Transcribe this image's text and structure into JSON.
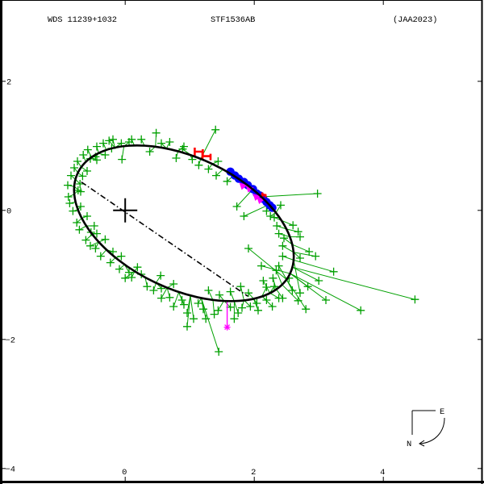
{
  "header": {
    "left": "WDS 11239+1032",
    "center": "STF1536AB",
    "right": "(JAA2023)"
  },
  "compass": {
    "east_label": "E",
    "north_label": "N"
  },
  "colors": {
    "green_observations": "#00a000",
    "blue_observations": "#0000ff",
    "magenta_observations": "#ff00ff",
    "red_observations": "#ff0000",
    "orbit": "#000000"
  },
  "chart_data": {
    "type": "scatter",
    "title": "WDS 11239+1032",
    "subtitle": "STF1536AB",
    "annotation": "(JAA2023)",
    "xlabel": "",
    "ylabel": "",
    "xlim": [
      -1.94,
      5.56
    ],
    "ylim": [
      -4.24,
      3.26
    ],
    "x_ticks": [
      0,
      2,
      4
    ],
    "y_ticks": [
      2,
      0,
      -2,
      -4
    ],
    "grid": false,
    "legend": "none",
    "primary": [
      0,
      0
    ],
    "orbit": {
      "type": "ellipse",
      "cx": 0.91,
      "cy": -0.2,
      "a": 1.82,
      "b": 1.02,
      "angle_deg": -25.3
    },
    "line_of_nodes": [
      [
        -0.68,
        0.44
      ],
      [
        1.9,
        -1.33
      ]
    ],
    "series": [
      {
        "name": "green plus observations (obs_x, obs_y, orbit_x, orbit_y)",
        "color": "#00a000",
        "marker": "plus",
        "points": [
          [
            -0.81,
            -0.01,
            -0.73,
            0.01
          ],
          [
            -0.86,
            0.11,
            -0.77,
            0.13
          ],
          [
            -0.73,
            0.31,
            -0.79,
            0.25
          ],
          [
            -0.89,
            0.39,
            -0.79,
            0.37
          ],
          [
            -0.84,
            0.54,
            -0.77,
            0.48
          ],
          [
            -0.7,
            0.41,
            -0.77,
            0.48
          ],
          [
            -0.79,
            0.66,
            -0.73,
            0.58
          ],
          [
            -0.74,
            0.76,
            -0.68,
            0.67
          ],
          [
            -0.59,
            0.61,
            -0.68,
            0.67
          ],
          [
            -0.65,
            0.86,
            -0.61,
            0.75
          ],
          [
            -0.54,
            0.8,
            -0.61,
            0.75
          ],
          [
            -0.58,
            0.94,
            -0.52,
            0.82
          ],
          [
            -0.44,
            0.78,
            -0.52,
            0.82
          ],
          [
            -0.44,
            0.99,
            -0.41,
            0.88
          ],
          [
            -0.31,
            0.86,
            -0.41,
            0.88
          ],
          [
            -0.34,
            1.04,
            -0.29,
            0.93
          ],
          [
            -0.21,
            0.96,
            -0.29,
            0.93
          ],
          [
            -0.19,
            1.1,
            -0.16,
            0.97
          ],
          [
            -0.06,
            1.04,
            -0.16,
            0.97
          ],
          [
            0.06,
            1.06,
            -0.02,
            0.99
          ],
          [
            -0.05,
            0.79,
            -0.02,
            0.99
          ],
          [
            0.1,
            1.1,
            0.14,
            1.01
          ],
          [
            0.48,
            1.2,
            0.47,
            0.99
          ],
          [
            0.25,
            1.1,
            0.3,
            1.0
          ],
          [
            0.69,
            1.06,
            0.64,
            0.96
          ],
          [
            0.79,
            0.81,
            0.82,
            0.92
          ],
          [
            0.89,
            0.95,
            1.0,
            0.87
          ],
          [
            1.14,
            0.7,
            1.17,
            0.8
          ],
          [
            1.4,
            1.25,
            1.17,
            0.8
          ],
          [
            1.29,
            0.64,
            1.35,
            0.72
          ],
          [
            1.44,
            0.76,
            1.35,
            0.72
          ],
          [
            1.41,
            0.54,
            1.52,
            0.64
          ],
          [
            1.58,
            0.45,
            1.68,
            0.54
          ],
          [
            1.73,
            0.06,
            1.98,
            0.33
          ],
          [
            2.98,
            0.26,
            2.11,
            0.21
          ],
          [
            1.84,
            -0.09,
            2.23,
            0.09
          ],
          [
            -0.75,
            -0.19,
            -0.67,
            -0.12
          ],
          [
            -0.59,
            -0.09,
            -0.67,
            -0.12
          ],
          [
            -0.71,
            -0.3,
            -0.6,
            -0.24
          ],
          [
            -0.53,
            -0.34,
            -0.6,
            -0.24
          ],
          [
            -0.61,
            -0.46,
            -0.51,
            -0.37
          ],
          [
            -0.44,
            -0.36,
            -0.51,
            -0.37
          ],
          [
            -0.46,
            -0.59,
            -0.41,
            -0.49
          ],
          [
            -0.31,
            -0.45,
            -0.41,
            -0.49
          ],
          [
            -0.38,
            -0.71,
            -0.29,
            -0.61
          ],
          [
            -0.19,
            -0.64,
            -0.29,
            -0.61
          ],
          [
            -0.23,
            -0.81,
            -0.15,
            -0.73
          ],
          [
            -0.06,
            -0.71,
            -0.15,
            -0.73
          ],
          [
            -0.09,
            -0.91,
            -0.01,
            -0.84
          ],
          [
            0.06,
            -0.96,
            -0.01,
            -0.84
          ],
          [
            0.19,
            -0.88,
            0.15,
            -0.94
          ],
          [
            0.1,
            -1.04,
            0.15,
            -0.94
          ],
          [
            0.34,
            -1.18,
            0.31,
            -1.04
          ],
          [
            0.25,
            -0.99,
            0.31,
            -1.04
          ],
          [
            0.55,
            -1.01,
            0.48,
            -1.12
          ],
          [
            0.56,
            -1.21,
            0.48,
            -1.12
          ],
          [
            0.69,
            -1.35,
            0.65,
            -1.2
          ],
          [
            0.56,
            -1.36,
            0.65,
            -1.2
          ],
          [
            0.91,
            -1.46,
            0.83,
            -1.27
          ],
          [
            0.75,
            -1.49,
            0.83,
            -1.27
          ],
          [
            1.06,
            -1.68,
            1.01,
            -1.32
          ],
          [
            0.96,
            -1.8,
            1.01,
            -1.32
          ],
          [
            1.21,
            -1.53,
            1.18,
            -1.36
          ],
          [
            1.45,
            -2.19,
            1.18,
            -1.36
          ],
          [
            1.38,
            -1.61,
            1.36,
            -1.39
          ],
          [
            1.29,
            -1.24,
            1.36,
            -1.39
          ],
          [
            1.44,
            -1.55,
            1.53,
            -1.4
          ],
          [
            1.63,
            -1.5,
            1.53,
            -1.4
          ],
          [
            1.75,
            -1.59,
            1.69,
            -1.41
          ],
          [
            1.63,
            -1.26,
            1.69,
            -1.41
          ],
          [
            1.94,
            -1.49,
            1.84,
            -1.39
          ],
          [
            1.79,
            -1.18,
            1.84,
            -1.39
          ],
          [
            2.06,
            -1.55,
            1.99,
            -1.37
          ],
          [
            1.91,
            -1.28,
            1.99,
            -1.37
          ],
          [
            2.28,
            -1.49,
            2.12,
            -1.33
          ],
          [
            2.19,
            -1.19,
            2.12,
            -1.33
          ],
          [
            2.38,
            -1.36,
            2.24,
            -1.28
          ],
          [
            2.14,
            -1.09,
            2.24,
            -1.28
          ],
          [
            2.44,
            -1.36,
            2.34,
            -1.22
          ],
          [
            2.29,
            -1.05,
            2.34,
            -1.22
          ],
          [
            2.68,
            -1.4,
            2.43,
            -1.15
          ],
          [
            2.34,
            -0.93,
            2.43,
            -1.15
          ],
          [
            2.8,
            -1.53,
            2.5,
            -1.07
          ],
          [
            2.38,
            -0.86,
            2.5,
            -1.07
          ],
          [
            3.11,
            -1.39,
            2.56,
            -0.98
          ],
          [
            3.65,
            -1.55,
            2.56,
            -0.98
          ],
          [
            4.49,
            -1.38,
            2.59,
            -0.88
          ],
          [
            3.0,
            -1.09,
            2.59,
            -0.88
          ],
          [
            3.23,
            -0.95,
            2.61,
            -0.77
          ],
          [
            2.71,
            -1.28,
            2.61,
            -0.77
          ],
          [
            2.44,
            -0.71,
            2.61,
            -0.77
          ],
          [
            2.95,
            -0.71,
            2.61,
            -0.65
          ],
          [
            2.44,
            -0.55,
            2.61,
            -0.65
          ],
          [
            2.85,
            -0.64,
            2.59,
            -0.53
          ],
          [
            2.46,
            -0.43,
            2.59,
            -0.53
          ],
          [
            2.71,
            -0.41,
            2.55,
            -0.41
          ],
          [
            2.38,
            -0.36,
            2.55,
            -0.41
          ],
          [
            2.68,
            -0.33,
            2.5,
            -0.29
          ],
          [
            2.35,
            -0.24,
            2.5,
            -0.29
          ],
          [
            2.6,
            -0.23,
            2.43,
            -0.16
          ],
          [
            2.31,
            -0.11,
            2.43,
            -0.16
          ],
          [
            2.41,
            0.08,
            2.34,
            -0.03
          ],
          [
            2.25,
            -0.09,
            2.34,
            -0.03
          ],
          [
            2.19,
            -0.01,
            2.23,
            0.09
          ],
          [
            2.83,
            -1.18,
            2.56,
            -0.98
          ],
          [
            2.59,
            -1.24,
            2.5,
            -1.07
          ],
          [
            1.91,
            -0.59,
            2.5,
            -1.07
          ],
          [
            2.11,
            -0.86,
            2.56,
            -0.98
          ],
          [
            0.38,
            0.91,
            0.47,
            0.99
          ],
          [
            0.56,
            1.04,
            0.64,
            0.96
          ],
          [
            0.91,
            0.99,
            0.82,
            0.92
          ],
          [
            1.04,
            0.79,
            1.0,
            0.87
          ],
          [
            -0.25,
            1.08,
            -0.16,
            0.97
          ],
          [
            -0.46,
            0.83,
            -0.41,
            0.88
          ],
          [
            -0.66,
            0.53,
            -0.73,
            0.58
          ],
          [
            -0.69,
            0.29,
            -0.79,
            0.37
          ],
          [
            -0.88,
            0.21,
            -0.79,
            0.25
          ],
          [
            -0.69,
            0.06,
            -0.73,
            0.01
          ],
          [
            -0.48,
            -0.24,
            -0.6,
            -0.24
          ],
          [
            -0.54,
            -0.55,
            -0.41,
            -0.49
          ],
          [
            0.0,
            -1.05,
            0.15,
            -0.94
          ],
          [
            0.75,
            -1.14,
            0.65,
            -1.2
          ],
          [
            1.13,
            -1.44,
            1.18,
            -1.36
          ],
          [
            1.46,
            -1.31,
            1.53,
            -1.4
          ],
          [
            2.04,
            -1.44,
            1.99,
            -1.37
          ],
          [
            2.31,
            -1.18,
            2.24,
            -1.28
          ],
          [
            2.54,
            -1.05,
            2.43,
            -1.15
          ],
          [
            2.71,
            -0.74,
            2.61,
            -0.65
          ],
          [
            0.96,
            -1.59,
            1.01,
            -1.32
          ],
          [
            1.25,
            -1.68,
            1.18,
            -1.36
          ],
          [
            1.69,
            -1.68,
            1.69,
            -1.41
          ],
          [
            1.81,
            -1.51,
            1.84,
            -1.39
          ],
          [
            0.88,
            -1.39,
            0.83,
            -1.27
          ],
          [
            0.44,
            -1.24,
            0.48,
            -1.12
          ],
          [
            2.19,
            -1.39,
            2.12,
            -1.33
          ]
        ]
      },
      {
        "name": "blue filled-circle observations",
        "color": "#0000ff",
        "marker": "filled-circle",
        "points": [
          [
            1.63,
            0.6
          ],
          [
            1.7,
            0.54
          ],
          [
            1.76,
            0.49
          ],
          [
            1.84,
            0.44
          ],
          [
            1.9,
            0.39
          ],
          [
            1.98,
            0.33
          ],
          [
            2.04,
            0.26
          ],
          [
            2.09,
            0.23
          ],
          [
            2.14,
            0.18
          ],
          [
            2.19,
            0.13
          ],
          [
            2.24,
            0.08
          ],
          [
            2.28,
            0.04
          ]
        ]
      },
      {
        "name": "magenta triangle observations",
        "color": "#ff00ff",
        "marker": "triangle",
        "points": [
          [
            1.83,
            0.38
          ],
          [
            1.93,
            0.34
          ],
          [
            2.04,
            0.21
          ],
          [
            2.1,
            0.16
          ]
        ]
      },
      {
        "name": "red H-bar observations",
        "color": "#ff0000",
        "marker": "H",
        "points": [
          [
            1.14,
            0.91
          ],
          [
            1.26,
            0.84
          ],
          [
            2.15,
            0.24
          ]
        ]
      },
      {
        "name": "magenta asterisk observation (obs_x, obs_y, orbit_x, orbit_y)",
        "color": "#ff00ff",
        "marker": "asterisk",
        "points": [
          [
            1.58,
            -1.81,
            1.58,
            -1.4
          ]
        ]
      }
    ]
  }
}
